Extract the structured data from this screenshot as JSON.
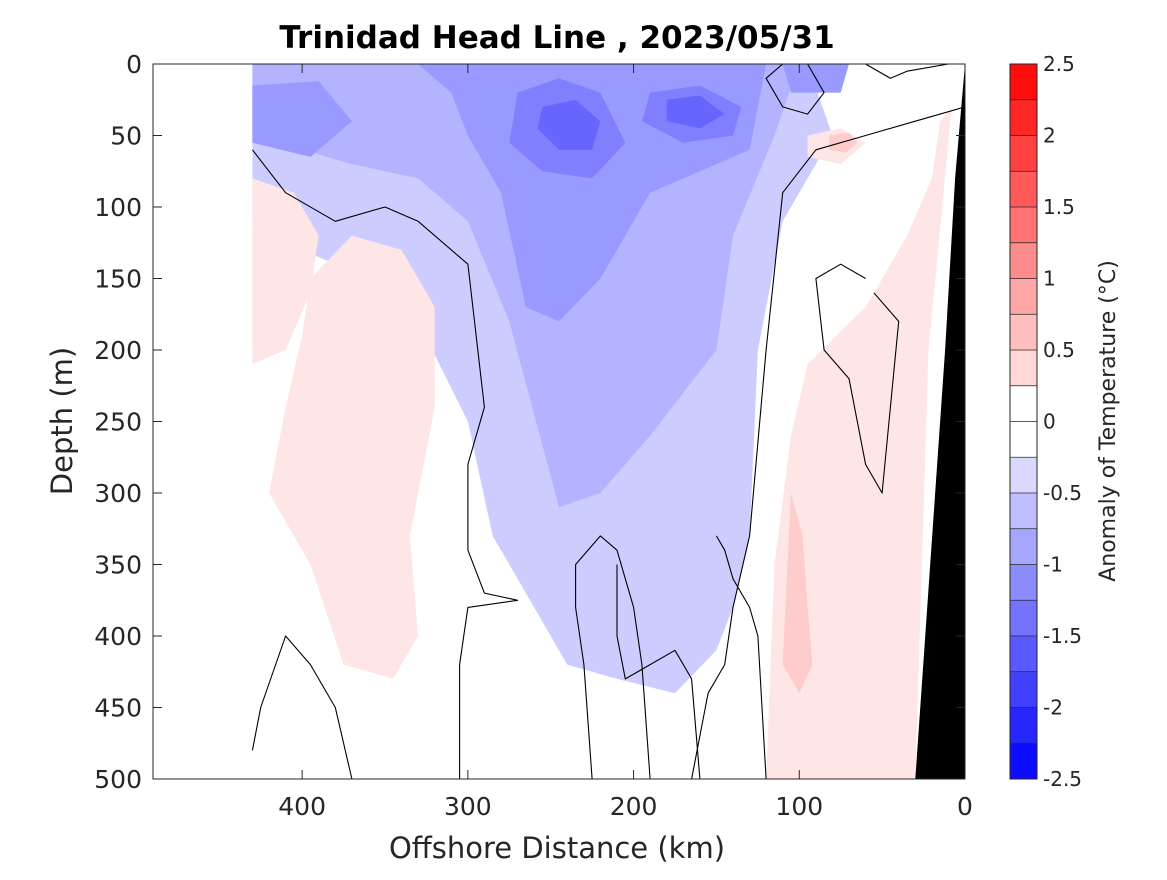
{
  "chart_data": {
    "type": "heatmap",
    "title": "Trinidad Head Line , 2023/05/31",
    "xlabel": "Offshore Distance (km)",
    "ylabel": "Depth (m)",
    "xlim": [
      490,
      0
    ],
    "ylim": [
      0,
      500
    ],
    "x_reversed": true,
    "y_reversed": true,
    "x_ticks": [
      "400",
      "300",
      "200",
      "100",
      "0"
    ],
    "x_tick_values": [
      400,
      300,
      200,
      100,
      0
    ],
    "y_ticks": [
      "0",
      "50",
      "100",
      "150",
      "200",
      "250",
      "300",
      "350",
      "400",
      "450",
      "500"
    ],
    "y_tick_values": [
      0,
      50,
      100,
      150,
      200,
      250,
      300,
      350,
      400,
      450,
      500
    ],
    "colorbar": {
      "label": "Anomaly of Temperature (°C)",
      "range": [
        -2.5,
        2.5
      ],
      "step": 0.25,
      "ticks": [
        "2.5",
        "2",
        "1.5",
        "1",
        "0.5",
        "0",
        "-0.5",
        "-1",
        "-1.5",
        "-2",
        "-2.5"
      ],
      "tick_values": [
        2.5,
        2,
        1.5,
        1,
        0.5,
        0,
        -0.5,
        -1,
        -1.5,
        -2,
        -2.5
      ],
      "negative_color": "#0000ff",
      "positive_color": "#ff0000",
      "neutral_color": "#ffffff"
    },
    "data_extent": {
      "x_max_km": 430
    },
    "bathymetry": {
      "color": "#000000",
      "points": [
        [
          0,
          0
        ],
        [
          0,
          500
        ],
        [
          30,
          500
        ],
        [
          12,
          200
        ],
        [
          6,
          80
        ]
      ]
    },
    "contour_color": "#000000",
    "regions": [
      {
        "level": -0.5,
        "points": [
          [
            430,
            0
          ],
          [
            95,
            0
          ],
          [
            80,
            50
          ],
          [
            110,
            110
          ],
          [
            125,
            200
          ],
          [
            130,
            330
          ],
          [
            140,
            380
          ],
          [
            150,
            410
          ],
          [
            175,
            440
          ],
          [
            210,
            430
          ],
          [
            240,
            420
          ],
          [
            285,
            330
          ],
          [
            300,
            250
          ],
          [
            330,
            180
          ],
          [
            360,
            150
          ],
          [
            400,
            130
          ],
          [
            430,
            110
          ]
        ]
      },
      {
        "level": -0.75,
        "points": [
          [
            430,
            0
          ],
          [
            100,
            0
          ],
          [
            115,
            50
          ],
          [
            140,
            120
          ],
          [
            150,
            200
          ],
          [
            170,
            230
          ],
          [
            190,
            260
          ],
          [
            220,
            300
          ],
          [
            245,
            310
          ],
          [
            275,
            180
          ],
          [
            300,
            110
          ],
          [
            330,
            80
          ],
          [
            370,
            70
          ],
          [
            400,
            60
          ],
          [
            430,
            55
          ]
        ]
      },
      {
        "level": -1.0,
        "points": [
          [
            330,
            0
          ],
          [
            120,
            0
          ],
          [
            130,
            60
          ],
          [
            190,
            90
          ],
          [
            220,
            150
          ],
          [
            245,
            180
          ],
          [
            265,
            170
          ],
          [
            280,
            90
          ],
          [
            300,
            50
          ],
          [
            310,
            20
          ]
        ]
      },
      {
        "level": -1.0,
        "points": [
          [
            430,
            15
          ],
          [
            390,
            12
          ],
          [
            370,
            40
          ],
          [
            395,
            65
          ],
          [
            430,
            55
          ]
        ]
      },
      {
        "level": -1.0,
        "points": [
          [
            110,
            0
          ],
          [
            70,
            0
          ],
          [
            75,
            20
          ],
          [
            105,
            20
          ]
        ]
      },
      {
        "level": -1.25,
        "points": [
          [
            270,
            20
          ],
          [
            245,
            10
          ],
          [
            220,
            20
          ],
          [
            205,
            55
          ],
          [
            225,
            80
          ],
          [
            255,
            75
          ],
          [
            275,
            55
          ]
        ]
      },
      {
        "level": -1.25,
        "points": [
          [
            190,
            20
          ],
          [
            160,
            15
          ],
          [
            135,
            30
          ],
          [
            140,
            50
          ],
          [
            170,
            55
          ],
          [
            195,
            40
          ]
        ]
      },
      {
        "level": -1.5,
        "points": [
          [
            255,
            30
          ],
          [
            235,
            25
          ],
          [
            220,
            40
          ],
          [
            225,
            60
          ],
          [
            245,
            60
          ],
          [
            258,
            45
          ]
        ]
      },
      {
        "level": -1.5,
        "points": [
          [
            180,
            25
          ],
          [
            160,
            22
          ],
          [
            145,
            35
          ],
          [
            160,
            45
          ],
          [
            180,
            40
          ]
        ]
      },
      {
        "level": 0.25,
        "points": [
          [
            430,
            80
          ],
          [
            405,
            90
          ],
          [
            390,
            120
          ],
          [
            395,
            160
          ],
          [
            410,
            200
          ],
          [
            430,
            210
          ]
        ]
      },
      {
        "level": 0.25,
        "points": [
          [
            370,
            120
          ],
          [
            340,
            130
          ],
          [
            320,
            170
          ],
          [
            320,
            240
          ],
          [
            330,
            300
          ],
          [
            335,
            330
          ],
          [
            330,
            400
          ],
          [
            345,
            430
          ],
          [
            375,
            420
          ],
          [
            395,
            350
          ],
          [
            420,
            300
          ],
          [
            410,
            240
          ],
          [
            400,
            190
          ],
          [
            395,
            150
          ]
        ]
      },
      {
        "level": 0.25,
        "points": [
          [
            120,
            500
          ],
          [
            115,
            350
          ],
          [
            105,
            260
          ],
          [
            95,
            210
          ],
          [
            60,
            170
          ],
          [
            35,
            120
          ],
          [
            20,
            80
          ],
          [
            15,
            40
          ],
          [
            8,
            30
          ],
          [
            22,
            200
          ],
          [
            30,
            500
          ]
        ]
      },
      {
        "level": 0.25,
        "points": [
          [
            95,
            50
          ],
          [
            75,
            45
          ],
          [
            60,
            55
          ],
          [
            75,
            70
          ],
          [
            95,
            65
          ]
        ]
      },
      {
        "level": 0.5,
        "points": [
          [
            105,
            300
          ],
          [
            98,
            330
          ],
          [
            95,
            380
          ],
          [
            92,
            420
          ],
          [
            100,
            440
          ],
          [
            110,
            420
          ],
          [
            108,
            370
          ]
        ]
      },
      {
        "level": 0.5,
        "points": [
          [
            82,
            50
          ],
          [
            70,
            48
          ],
          [
            65,
            55
          ],
          [
            72,
            62
          ],
          [
            82,
            60
          ]
        ]
      }
    ],
    "zero_contours": [
      [
        [
          430,
          60
        ],
        [
          410,
          90
        ],
        [
          380,
          110
        ],
        [
          350,
          100
        ],
        [
          330,
          110
        ],
        [
          300,
          140
        ],
        [
          290,
          240
        ],
        [
          300,
          280
        ],
        [
          300,
          340
        ],
        [
          290,
          370
        ],
        [
          270,
          375
        ],
        [
          300,
          380
        ],
        [
          305,
          420
        ],
        [
          305,
          500
        ]
      ],
      [
        [
          430,
          480
        ],
        [
          425,
          450
        ],
        [
          410,
          400
        ],
        [
          395,
          420
        ],
        [
          380,
          450
        ],
        [
          370,
          500
        ]
      ],
      [
        [
          190,
          500
        ],
        [
          195,
          420
        ],
        [
          200,
          380
        ],
        [
          210,
          340
        ],
        [
          220,
          330
        ],
        [
          235,
          350
        ],
        [
          235,
          380
        ],
        [
          230,
          420
        ],
        [
          225,
          500
        ]
      ],
      [
        [
          160,
          500
        ],
        [
          165,
          430
        ],
        [
          175,
          410
        ],
        [
          205,
          430
        ],
        [
          210,
          400
        ],
        [
          210,
          350
        ]
      ],
      [
        [
          120,
          500
        ],
        [
          125,
          400
        ],
        [
          130,
          380
        ],
        [
          140,
          360
        ],
        [
          145,
          340
        ],
        [
          150,
          330
        ]
      ],
      [
        [
          0,
          30
        ],
        [
          30,
          40
        ],
        [
          60,
          50
        ],
        [
          90,
          60
        ],
        [
          110,
          90
        ],
        [
          120,
          200
        ],
        [
          130,
          330
        ],
        [
          140,
          380
        ],
        [
          145,
          420
        ],
        [
          155,
          440
        ],
        [
          165,
          500
        ]
      ],
      [
        [
          60,
          150
        ],
        [
          75,
          140
        ],
        [
          90,
          150
        ],
        [
          85,
          200
        ],
        [
          70,
          220
        ],
        [
          60,
          280
        ],
        [
          50,
          300
        ],
        [
          45,
          240
        ],
        [
          40,
          180
        ],
        [
          55,
          160
        ]
      ],
      [
        [
          10,
          0
        ],
        [
          35,
          5
        ],
        [
          45,
          10
        ],
        [
          60,
          0
        ]
      ],
      [
        [
          110,
          0
        ],
        [
          120,
          10
        ],
        [
          110,
          30
        ],
        [
          95,
          35
        ],
        [
          85,
          20
        ],
        [
          95,
          0
        ]
      ]
    ]
  }
}
